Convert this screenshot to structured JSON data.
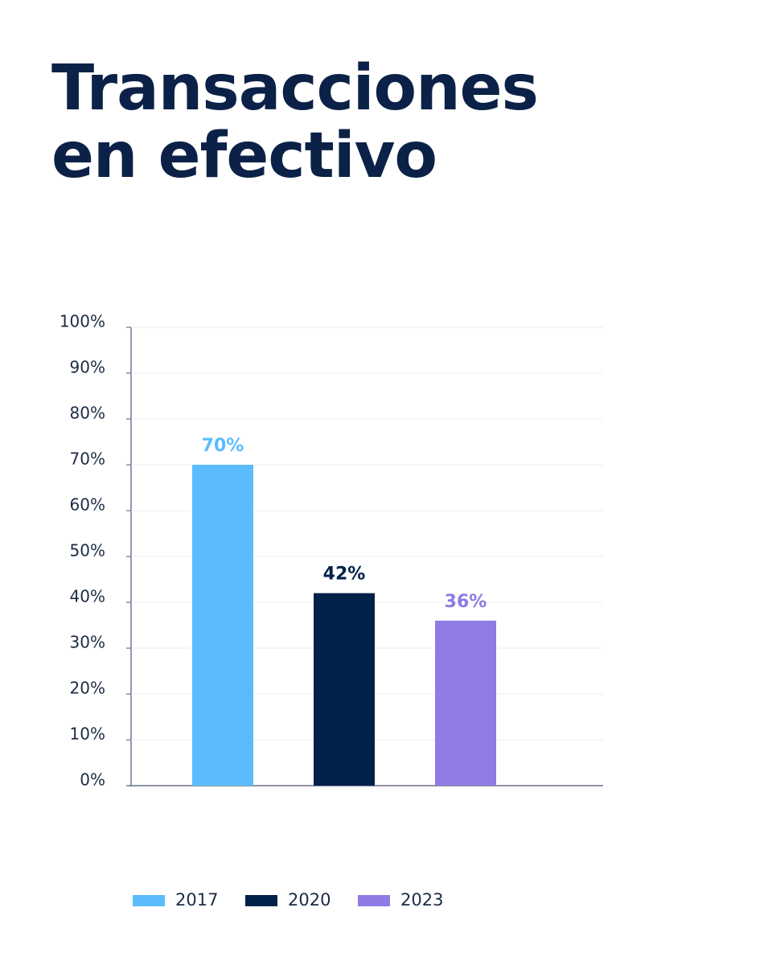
{
  "chart_data": {
    "type": "bar",
    "title": "Transacciones en efectivo",
    "categories": [
      "2017",
      "2020",
      "2023"
    ],
    "values": [
      70,
      42,
      36
    ],
    "value_labels": [
      "70%",
      "42%",
      "36%"
    ],
    "colors": [
      "#5bbcfd",
      "#02214a",
      "#8f7be3"
    ],
    "ylim": [
      0,
      100
    ],
    "yticks": [
      {
        "value": 0,
        "label": "0%"
      },
      {
        "value": 10,
        "label": "10%"
      },
      {
        "value": 20,
        "label": "20%"
      },
      {
        "value": 30,
        "label": "30%"
      },
      {
        "value": 40,
        "label": "40%"
      },
      {
        "value": 50,
        "label": "50%"
      },
      {
        "value": 60,
        "label": "60%"
      },
      {
        "value": 70,
        "label": "70%"
      },
      {
        "value": 80,
        "label": "80%"
      },
      {
        "value": 90,
        "label": "90%"
      },
      {
        "value": 100,
        "label": "100%"
      }
    ],
    "grid": true,
    "legend": "bottom"
  }
}
